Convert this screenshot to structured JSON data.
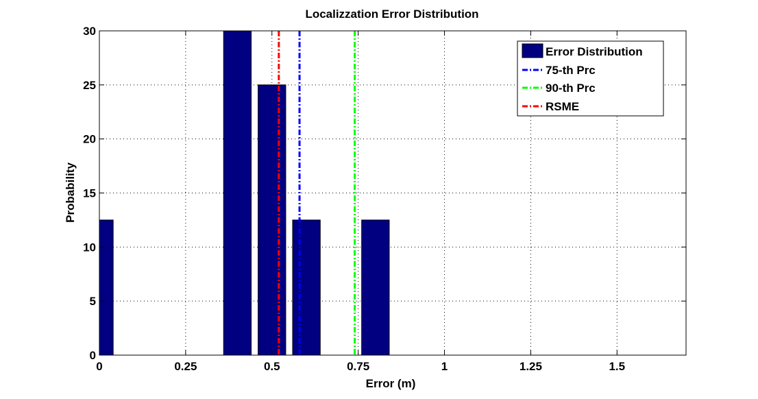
{
  "chart_data": {
    "type": "bar",
    "title": "Localizzation Error Distribution",
    "xlabel": "Error (m)",
    "ylabel": "Probability",
    "xlim": [
      0,
      1.7
    ],
    "ylim": [
      0,
      30
    ],
    "xticks": [
      0,
      0.25,
      0.5,
      0.75,
      1,
      1.25,
      1.5
    ],
    "xtick_labels": [
      "0",
      "0.25",
      "0.5",
      "0.75",
      "1",
      "1.25",
      "1.5"
    ],
    "yticks": [
      0,
      5,
      10,
      15,
      20,
      25,
      30
    ],
    "ytick_labels": [
      "0",
      "5",
      "10",
      "15",
      "20",
      "25",
      "30"
    ],
    "grid": true,
    "legend_position": "top-right",
    "bar_width": 0.08,
    "bars": {
      "name": "Error Distribution",
      "color": "#000080",
      "x": [
        0,
        0.4,
        0.5,
        0.6,
        0.8
      ],
      "values": [
        12.5,
        30,
        25,
        12.5,
        12.5
      ]
    },
    "vlines": [
      {
        "name": "75-th Prc",
        "x": 0.58,
        "color": "#0000ff"
      },
      {
        "name": "90-th Prc",
        "x": 0.74,
        "color": "#00ff00"
      },
      {
        "name": "RSME",
        "x": 0.52,
        "color": "#ff0000"
      }
    ]
  }
}
